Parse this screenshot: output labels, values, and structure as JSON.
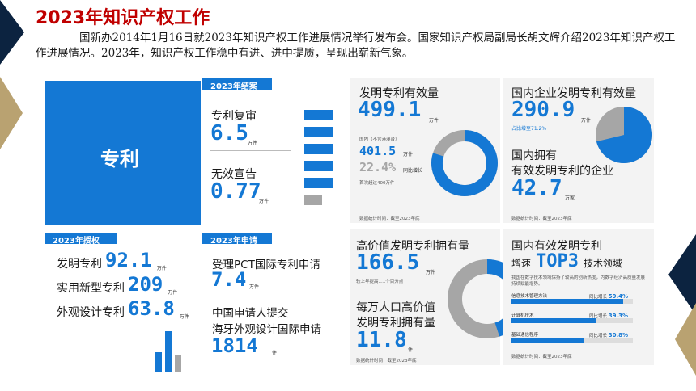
{
  "slide": {
    "title": "2023年知识产权工作",
    "intro": "国新办2014年1月16日就2023年知识产权工作进展情况举行发布会。国家知识产权局副局长胡文辉介绍2023年知识产权工作进展情况。2023年，知识产权工作稳中有进、进中提质，呈现出崭新气象。"
  },
  "colors": {
    "accent": "#1478d4",
    "title": "#c00000",
    "gold": "#b9a271",
    "navy": "#0c2340",
    "gray": "#a6a6a6"
  },
  "patent_block": {
    "label": "专利"
  },
  "closed": {
    "tag": "2023年结案",
    "review_label": "专利复审",
    "review_value": "6.5",
    "review_unit": "万件",
    "invalid_label": "无效宣告",
    "invalid_value": "0.77",
    "invalid_unit": "万件"
  },
  "granted": {
    "tag": "2023年授权",
    "items": [
      {
        "label": "发明专利",
        "value": "92.1",
        "unit": "万件"
      },
      {
        "label": "实用新型专利",
        "value": "209",
        "unit": "万件"
      },
      {
        "label": "外观设计专利",
        "value": "63.8",
        "unit": "万件"
      }
    ]
  },
  "applications": {
    "tag": "2023年申请",
    "pct_label": "受理PCT国际专利申请",
    "pct_value": "7.4",
    "pct_unit": "万件",
    "hague_label1": "中国申请人提交",
    "hague_label2": "海牙外观设计国际申请",
    "hague_value": "1814",
    "hague_unit": "件"
  },
  "valid": {
    "label": "发明专利有效量",
    "value": "499.1",
    "unit": "万件",
    "domestic_label": "国内（不含港澳台）",
    "domestic_value": "401.5",
    "domestic_unit": "万件",
    "growth_value": "22.4%",
    "growth_note": "同比增长",
    "first_note": "首次超过400万件",
    "source": "数据统计时间：截至2023年底"
  },
  "enterprise": {
    "label": "国内企业发明专利有效量",
    "value": "290.9",
    "unit": "万件",
    "share_note": "占比增至71.2%",
    "owned_label1": "国内拥有",
    "owned_label2": "有效发明专利的企业",
    "owned_value": "42.7",
    "owned_unit": "万家",
    "source": "数据统计时间：截至2023年底"
  },
  "high_value": {
    "label": "高价值发明专利拥有量",
    "value": "166.5",
    "unit": "万件",
    "note": "较上年提高1.1个百分点",
    "per_label1": "每万人口高价值",
    "per_label2": "发明专利拥有量",
    "per_value": "11.8",
    "per_unit": "件",
    "source": "数据统计时间：截至2023年底"
  },
  "top3": {
    "label": "国内有效发明专利",
    "sub1": "增速",
    "sub2": "TOP3",
    "sub3": "技术领域",
    "desc": "我国在数字技术领域保持了较高的创新热度，为数字经济高质量发展持续赋能增势。",
    "items": [
      {
        "name": "信息技术管理方法",
        "note": "同比增长",
        "pct": "59.4%",
        "fill": 0.92
      },
      {
        "name": "计算机技术",
        "note": "同比增长",
        "pct": "39.3%",
        "fill": 0.7
      },
      {
        "name": "基础通信程序",
        "note": "同比增长",
        "pct": "30.8%",
        "fill": 0.6
      }
    ],
    "source": "数据统计时间：截至2023年底"
  },
  "charts": {
    "domestic_share": 0.8,
    "enterprise_share": 0.712,
    "high_value_share": 0.45,
    "closed_bars": [
      1,
      1,
      1,
      1,
      1,
      0.6
    ]
  }
}
